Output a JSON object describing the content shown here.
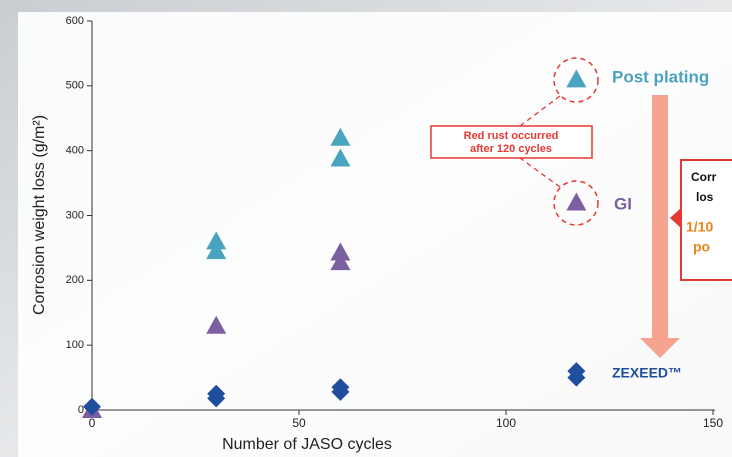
{
  "chart_data": {
    "type": "scatter",
    "x_label": "Number of JASO cycles",
    "y_label": "Corrosion weight loss (g/m²)",
    "xlim": [
      0,
      150
    ],
    "xticks": [
      0,
      50,
      100,
      150
    ],
    "ylim": [
      0,
      600
    ],
    "yticks": [
      0,
      100,
      200,
      300,
      400,
      500,
      600
    ],
    "series": [
      {
        "name": "Post plating",
        "color": "#4aa3bf",
        "marker": "triangle",
        "x": [
          30,
          30,
          60,
          60,
          117
        ],
        "values": [
          260,
          245,
          420,
          388,
          510
        ]
      },
      {
        "name": "GI",
        "color": "#7b5fa0",
        "marker": "triangle",
        "x": [
          0,
          30,
          60,
          60,
          117
        ],
        "values": [
          0,
          130,
          243,
          228,
          320
        ]
      },
      {
        "name": "ZEXEED™",
        "color": "#1f4e9c",
        "marker": "diamond",
        "x": [
          0,
          30,
          30,
          60,
          60,
          117,
          117
        ],
        "values": [
          5,
          25,
          18,
          35,
          28,
          60,
          50
        ]
      }
    ],
    "annotations": {
      "red_rust": [
        "Red rust occurred",
        "after 120 cycles"
      ],
      "side_box": [
        "Corr",
        "los",
        "1/10",
        "po"
      ]
    }
  }
}
